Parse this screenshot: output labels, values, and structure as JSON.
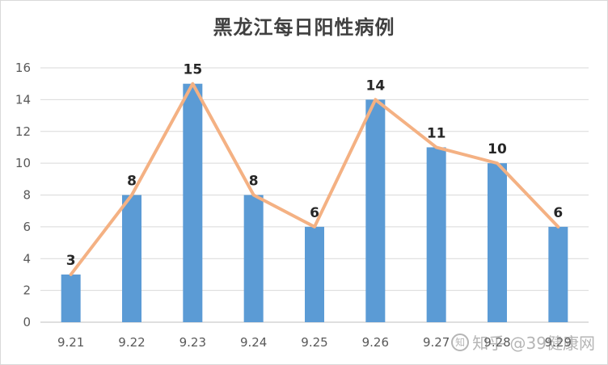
{
  "chart_data": {
    "type": "bar",
    "title": "黑龙江每日阳性病例",
    "categories": [
      "9.21",
      "9.22",
      "9.23",
      "9.24",
      "9.25",
      "9.26",
      "9.27",
      "9.28",
      "9.29"
    ],
    "series": [
      {
        "type": "bar",
        "values": [
          3,
          8,
          15,
          8,
          6,
          14,
          11,
          10,
          6
        ]
      },
      {
        "type": "line",
        "values": [
          3,
          8,
          15,
          8,
          6,
          14,
          11,
          10,
          6
        ]
      }
    ],
    "ylim": [
      0,
      16
    ],
    "yticks": [
      0,
      2,
      4,
      6,
      8,
      10,
      12,
      14,
      16
    ],
    "grid": true,
    "legend": "none",
    "colors": {
      "bar": "#5b9bd5",
      "line": "#f4b183",
      "grid": "#d9d9d9",
      "axis": "#bfbfbf"
    }
  },
  "watermark": {
    "text": "知乎 @39健康网"
  }
}
